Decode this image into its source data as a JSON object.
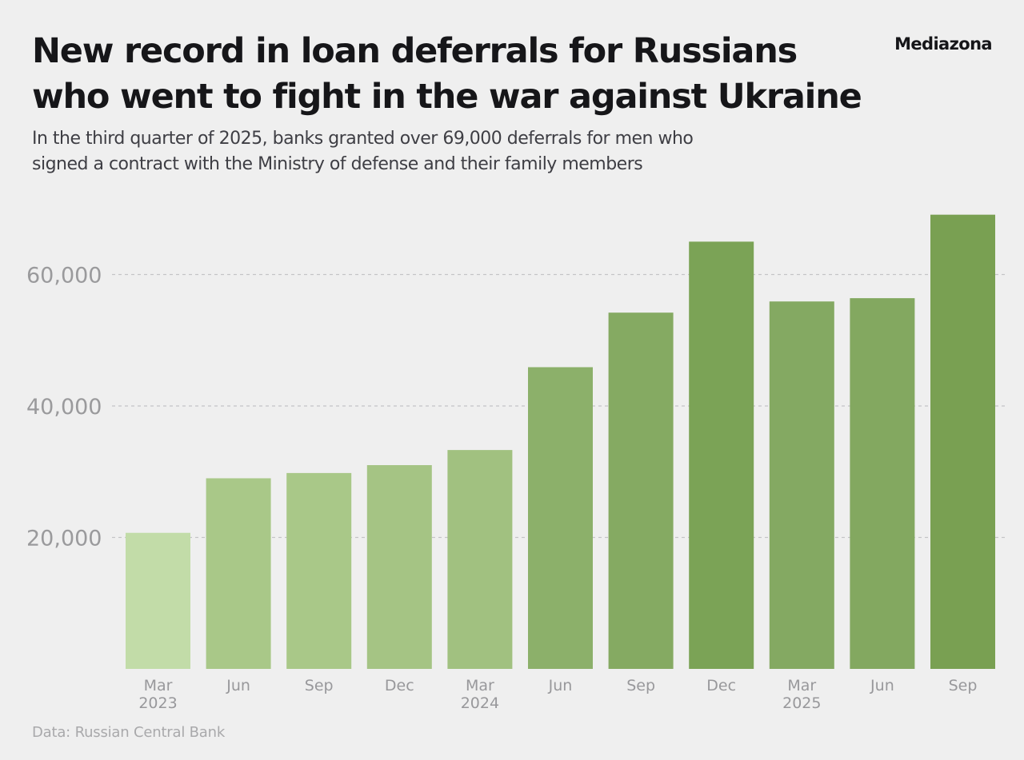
{
  "header": {
    "title_lines": [
      "New record in loan deferrals for Russians",
      "who went to fight in the war against Ukraine"
    ],
    "subtitle_lines": [
      "In the third quarter of 2025, banks granted over 69,000 deferrals for men who",
      "signed a contract with the Ministry of defense and their family members"
    ],
    "brand": "Mediazona"
  },
  "footer": {
    "source": "Data: Russian Central Bank"
  },
  "chart_data": {
    "type": "bar",
    "categories": [
      "Mar 2023",
      "Jun",
      "Sep",
      "Dec",
      "Mar 2024",
      "Jun",
      "Sep",
      "Dec",
      "Mar 2025",
      "Jun",
      "Sep"
    ],
    "category_labels": [
      [
        "Mar",
        "2023"
      ],
      [
        "Jun"
      ],
      [
        "Sep"
      ],
      [
        "Dec"
      ],
      [
        "Mar",
        "2024"
      ],
      [
        "Jun"
      ],
      [
        "Sep"
      ],
      [
        "Dec"
      ],
      [
        "Mar",
        "2025"
      ],
      [
        "Jun"
      ],
      [
        "Sep"
      ]
    ],
    "values": [
      20700,
      29000,
      29800,
      31000,
      33300,
      45900,
      54200,
      65000,
      55900,
      56400,
      69100
    ],
    "colors": [
      "#c2dca8",
      "#a9c888",
      "#a9c888",
      "#a5c484",
      "#a1c180",
      "#8cb06a",
      "#85aa62",
      "#7ba356",
      "#84a962",
      "#83a860",
      "#79a052"
    ],
    "yticks": [
      20000,
      40000,
      60000
    ],
    "ytick_labels": [
      "20,000",
      "40,000",
      "60,000"
    ],
    "ylim": [
      0,
      70000
    ],
    "grid": true,
    "xlabel": "",
    "ylabel": ""
  }
}
